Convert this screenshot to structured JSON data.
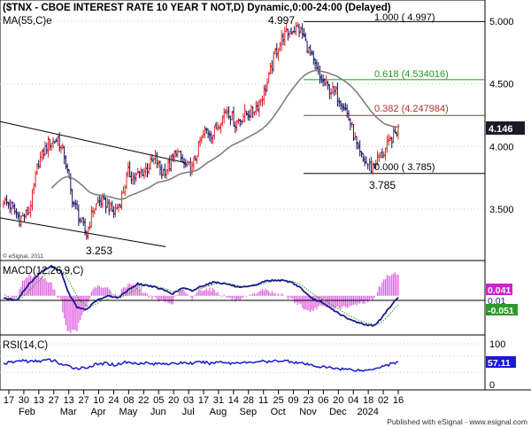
{
  "header": {
    "title": "($TNX - CBOE INTEREST RATE 10 YEAR T NOT,D) Dynamic,0:00-24:00 (Delayed)",
    "ma_label": "MA(55,C)e",
    "copyright": "© eSignal, 2011"
  },
  "footer": {
    "credit": "Published with eSignal - www.esignal.com"
  },
  "colors": {
    "up_candle": "#e02020",
    "down_candle": "#101060",
    "ma_line": "#808080",
    "channel": "#000000",
    "fib_100": "#000000",
    "fib_618": "#1a9a1a",
    "fib_382": "#b03030",
    "fib_0": "#000000",
    "macd_line": "#1a1a8a",
    "macd_signal": "#20a020",
    "macd_hist": "#e060e0",
    "rsi_line": "#1a1acc",
    "price_box": "#1a1a2a",
    "macd_box1": "#d020d0",
    "macd_box2": "#1a1a8a",
    "macd_box3": "#2a9a2a",
    "rsi_box": "#1a1acc"
  },
  "chart_data": [
    {
      "type": "candlestick",
      "title": "($TNX - CBOE INTEREST RATE 10 YEAR T NOT,D) Dynamic,0:00-24:00 (Delayed)",
      "ylim": [
        3.1,
        5.1
      ],
      "y_ticks": [
        "5.000",
        "4.500",
        "4.000",
        "3.500"
      ],
      "x_ticks": [
        "17",
        "30",
        "13",
        "27",
        "13",
        "27",
        "10",
        "24",
        "08",
        "22",
        "05",
        "20",
        "03",
        "17",
        "31",
        "14",
        "28",
        "11",
        "25",
        "09",
        "23",
        "06",
        "20",
        "04",
        "18",
        "02",
        "16"
      ],
      "x_months": [
        "Feb",
        "Mar",
        "Apr",
        "May",
        "Jun",
        "Jul",
        "Aug",
        "Sep",
        "Oct",
        "Nov",
        "Dec",
        "2024"
      ],
      "price_anchors": [
        [
          0,
          3.57
        ],
        [
          5,
          3.52
        ],
        [
          10,
          3.42
        ],
        [
          16,
          3.48
        ],
        [
          22,
          3.88
        ],
        [
          28,
          4.03
        ],
        [
          34,
          4.06
        ],
        [
          38,
          3.93
        ],
        [
          43,
          3.58
        ],
        [
          48,
          3.41
        ],
        [
          52,
          3.3
        ],
        [
          56,
          3.5
        ],
        [
          60,
          3.56
        ],
        [
          65,
          3.54
        ],
        [
          69,
          3.47
        ],
        [
          73,
          3.56
        ],
        [
          78,
          3.79
        ],
        [
          82,
          3.75
        ],
        [
          86,
          3.79
        ],
        [
          90,
          3.83
        ],
        [
          95,
          3.91
        ],
        [
          99,
          3.79
        ],
        [
          104,
          3.85
        ],
        [
          108,
          3.97
        ],
        [
          113,
          3.85
        ],
        [
          118,
          3.83
        ],
        [
          123,
          4.04
        ],
        [
          127,
          4.13
        ],
        [
          131,
          4.1
        ],
        [
          135,
          4.2
        ],
        [
          140,
          4.3
        ],
        [
          145,
          4.18
        ],
        [
          150,
          4.25
        ],
        [
          155,
          4.27
        ],
        [
          160,
          4.35
        ],
        [
          165,
          4.5
        ],
        [
          170,
          4.75
        ],
        [
          175,
          4.88
        ],
        [
          180,
          4.93
        ],
        [
          184,
          4.95
        ],
        [
          188,
          4.87
        ],
        [
          193,
          4.7
        ],
        [
          198,
          4.54
        ],
        [
          203,
          4.47
        ],
        [
          208,
          4.42
        ],
        [
          213,
          4.33
        ],
        [
          218,
          4.15
        ],
        [
          222,
          3.95
        ],
        [
          226,
          3.88
        ],
        [
          230,
          3.83
        ],
        [
          234,
          3.9
        ],
        [
          238,
          3.95
        ],
        [
          242,
          4.05
        ],
        [
          247,
          4.14
        ]
      ],
      "last_value": "4.146",
      "annotations": {
        "high": "4.997",
        "low": "3.785",
        "channel_low": "3.253"
      },
      "fibonacci": [
        {
          "label": "1.000 ( 4.997)",
          "value": 4.997
        },
        {
          "label": "0.618 (4.534016)",
          "value": 4.534
        },
        {
          "label": "0.382 (4.247984)",
          "value": 4.248
        },
        {
          "label": "0.000 ( 3.785)",
          "value": 3.785
        }
      ],
      "ma_period": 55
    },
    {
      "type": "line",
      "title": "MACD(12,26,9,C)",
      "ylim": [
        -0.38,
        0.34
      ],
      "zero_line": 0,
      "macd_anchors": [
        [
          0,
          -0.02
        ],
        [
          8,
          -0.05
        ],
        [
          16,
          0.12
        ],
        [
          24,
          0.25
        ],
        [
          30,
          0.3
        ],
        [
          36,
          0.25
        ],
        [
          40,
          0.05
        ],
        [
          46,
          -0.12
        ],
        [
          52,
          -0.14
        ],
        [
          58,
          -0.05
        ],
        [
          66,
          0.0
        ],
        [
          72,
          -0.02
        ],
        [
          78,
          0.06
        ],
        [
          84,
          0.12
        ],
        [
          92,
          0.1
        ],
        [
          100,
          0.06
        ],
        [
          106,
          0.02
        ],
        [
          112,
          0.08
        ],
        [
          118,
          0.05
        ],
        [
          124,
          0.1
        ],
        [
          132,
          0.14
        ],
        [
          140,
          0.12
        ],
        [
          148,
          0.08
        ],
        [
          156,
          0.1
        ],
        [
          164,
          0.15
        ],
        [
          172,
          0.16
        ],
        [
          180,
          0.14
        ],
        [
          186,
          0.08
        ],
        [
          192,
          -0.02
        ],
        [
          198,
          -0.06
        ],
        [
          204,
          -0.12
        ],
        [
          210,
          -0.18
        ],
        [
          216,
          -0.24
        ],
        [
          222,
          -0.27
        ],
        [
          228,
          -0.3
        ],
        [
          232,
          -0.3
        ],
        [
          236,
          -0.24
        ],
        [
          240,
          -0.15
        ],
        [
          244,
          -0.07
        ],
        [
          247,
          -0.01
        ]
      ],
      "values_shown": [
        "0.041",
        "0.01",
        "-0.051"
      ]
    },
    {
      "type": "line",
      "title": "RSI(14,C)",
      "ylim": [
        0,
        100
      ],
      "y_ticks": [
        "100",
        "0"
      ],
      "rsi_anchors": [
        [
          0,
          52
        ],
        [
          6,
          55
        ],
        [
          12,
          60
        ],
        [
          16,
          56
        ],
        [
          22,
          58
        ],
        [
          28,
          60
        ],
        [
          32,
          58
        ],
        [
          36,
          50
        ],
        [
          40,
          45
        ],
        [
          46,
          40
        ],
        [
          52,
          42
        ],
        [
          58,
          49
        ],
        [
          64,
          52
        ],
        [
          70,
          48
        ],
        [
          76,
          55
        ],
        [
          82,
          52
        ],
        [
          88,
          54
        ],
        [
          94,
          50
        ],
        [
          100,
          53
        ],
        [
          106,
          50
        ],
        [
          112,
          54
        ],
        [
          118,
          52
        ],
        [
          124,
          55
        ],
        [
          130,
          52
        ],
        [
          136,
          57
        ],
        [
          142,
          52
        ],
        [
          148,
          55
        ],
        [
          154,
          53
        ],
        [
          160,
          58
        ],
        [
          166,
          55
        ],
        [
          172,
          59
        ],
        [
          178,
          58
        ],
        [
          184,
          54
        ],
        [
          190,
          49
        ],
        [
          196,
          45
        ],
        [
          202,
          42
        ],
        [
          208,
          40
        ],
        [
          214,
          38
        ],
        [
          220,
          36
        ],
        [
          226,
          34
        ],
        [
          232,
          40
        ],
        [
          238,
          46
        ],
        [
          244,
          52
        ],
        [
          247,
          57
        ]
      ],
      "value_shown": "57.11"
    }
  ]
}
